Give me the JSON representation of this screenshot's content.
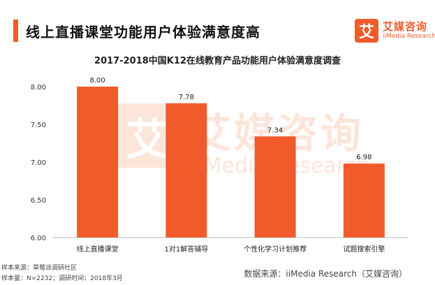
{
  "header": {
    "title": "线上直播课堂功能用户体验满意度高"
  },
  "logo": {
    "mark": "艾",
    "name_cn": "艾媒咨询",
    "name_en": "iiMedia Research"
  },
  "watermark": {
    "mark": "艾",
    "cn": "艾媒咨询",
    "en": "iiMedia Research"
  },
  "colors": {
    "accent": "#f15a2b",
    "bar": "#f15a2b"
  },
  "chart_data": {
    "type": "bar",
    "title": "2017-2018中国K12在线教育产品功能用户体验满意度调查",
    "categories": [
      "线上直播课堂",
      "1对1解答辅导",
      "个性化学习计划推荐",
      "试题搜索引擎"
    ],
    "values": [
      8.0,
      7.78,
      7.34,
      6.98
    ],
    "value_labels": [
      "8.00",
      "7.78",
      "7.34",
      "6.98"
    ],
    "yticks": [
      "6.00",
      "6.50",
      "7.00",
      "7.50",
      "8.00"
    ],
    "ylim": [
      6.0,
      8.0
    ],
    "xlabel": "",
    "ylabel": "",
    "grid": false,
    "legend": "none"
  },
  "footer": {
    "note1": "样本来源：草莓派调研社区",
    "note2": "样本量：N=2232；调研时间：2018年3月",
    "source": "数据来源：iiMedia Research（艾媒咨询）"
  }
}
